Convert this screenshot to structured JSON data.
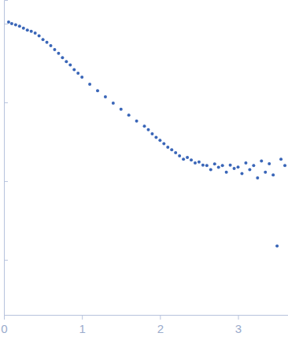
{
  "chart_data": {
    "type": "scatter",
    "log": "y",
    "color": "#3a66b8",
    "marker": "circle",
    "tick_labels": "x",
    "xlim": [
      0,
      3.64
    ],
    "xticks": [
      0,
      1,
      2,
      3
    ],
    "ylim": [
      0.0002,
      2
    ],
    "yticks": [
      1,
      0.1,
      0.01,
      0.001
    ],
    "x": [
      0.06,
      0.1,
      0.15,
      0.2,
      0.25,
      0.3,
      0.35,
      0.4,
      0.45,
      0.5,
      0.55,
      0.6,
      0.65,
      0.7,
      0.75,
      0.8,
      0.85,
      0.9,
      0.95,
      1.0,
      1.1,
      1.2,
      1.3,
      1.4,
      1.5,
      1.6,
      1.7,
      1.8,
      1.85,
      1.9,
      1.95,
      2.0,
      2.05,
      2.1,
      2.15,
      2.2,
      2.25,
      2.3,
      2.35,
      2.4,
      2.45,
      2.5,
      2.55,
      2.6,
      2.65,
      2.7,
      2.75,
      2.8,
      2.85,
      2.9,
      2.95,
      3.0,
      3.05,
      3.1,
      3.15,
      3.2,
      3.25,
      3.3,
      3.35,
      3.4,
      3.45,
      3.5,
      3.55,
      3.6
    ],
    "values": [
      1.05,
      1.0,
      0.97,
      0.93,
      0.88,
      0.83,
      0.8,
      0.76,
      0.7,
      0.63,
      0.58,
      0.525,
      0.47,
      0.42,
      0.37,
      0.33,
      0.3,
      0.26,
      0.235,
      0.21,
      0.17,
      0.141,
      0.118,
      0.098,
      0.082,
      0.069,
      0.058,
      0.05,
      0.045,
      0.04,
      0.036,
      0.033,
      0.03,
      0.027,
      0.025,
      0.023,
      0.021,
      0.019,
      0.02,
      0.0186,
      0.017,
      0.0175,
      0.016,
      0.0158,
      0.014,
      0.0165,
      0.015,
      0.0158,
      0.013,
      0.016,
      0.0145,
      0.0151,
      0.0125,
      0.017,
      0.014,
      0.0158,
      0.011,
      0.018,
      0.013,
      0.0166,
      0.012,
      0.0015,
      0.019,
      0.0158
    ]
  }
}
